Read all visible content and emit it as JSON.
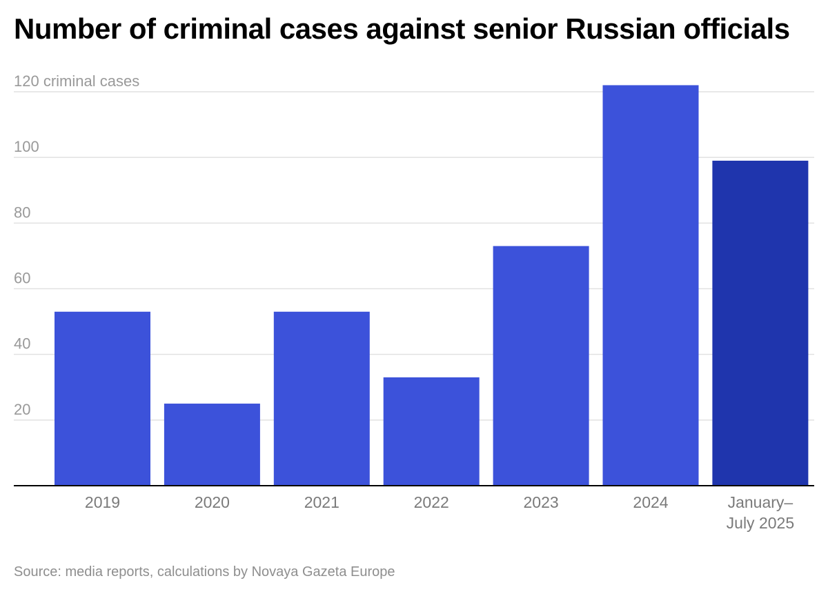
{
  "title": "Number of criminal cases against senior Russian officials",
  "source": "Source: media reports, calculations by Novaya Gazeta Europe",
  "colors": {
    "bar": "#3c52da",
    "bar_highlight": "#1f35ad",
    "grid": "#e1e1e1",
    "baseline": "#000000",
    "tick_label": "#999999",
    "category_label": "#7a7a7a"
  },
  "chart_data": {
    "type": "bar",
    "title": "Number of criminal cases against senior Russian officials",
    "categories": [
      "2019",
      "2020",
      "2021",
      "2022",
      "2023",
      "2024",
      "January– July 2025"
    ],
    "category_lines": [
      [
        "2019"
      ],
      [
        "2020"
      ],
      [
        "2021"
      ],
      [
        "2022"
      ],
      [
        "2023"
      ],
      [
        "2024"
      ],
      [
        "January–",
        "July 2025"
      ]
    ],
    "values": [
      53,
      25,
      53,
      33,
      73,
      122,
      99
    ],
    "highlight_index": 6,
    "ylim": [
      0,
      120
    ],
    "yticks": [
      20,
      40,
      60,
      80,
      100,
      120
    ],
    "ytick_labels": [
      "20",
      "40",
      "60",
      "80",
      "100",
      "120 criminal cases"
    ],
    "grid": true,
    "legend": "none"
  }
}
